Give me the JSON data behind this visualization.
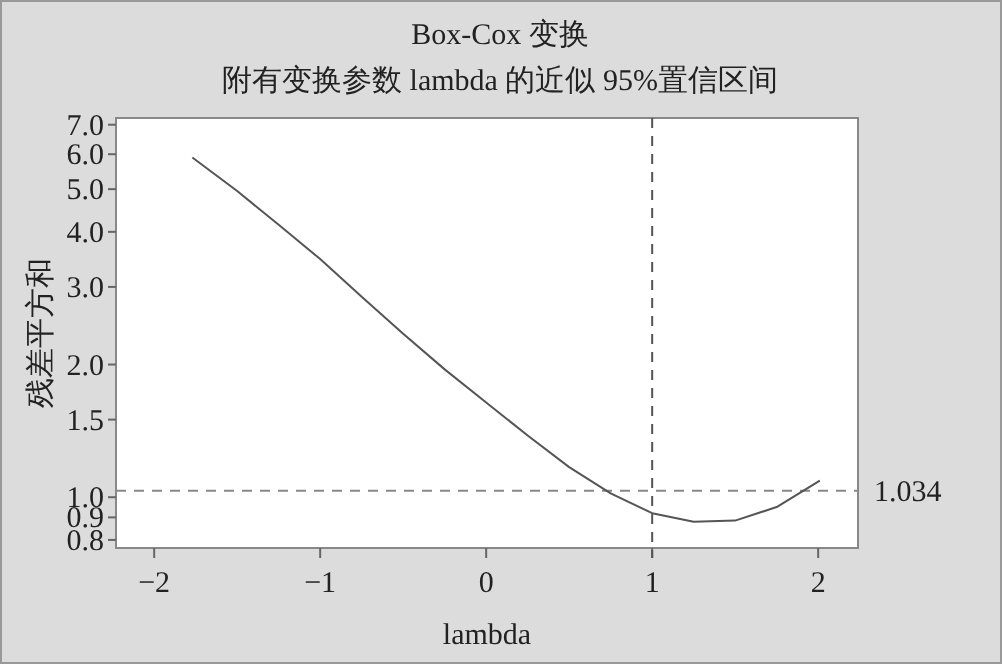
{
  "chart_data": {
    "type": "line",
    "title": "Box-Cox 变换",
    "subtitle": "附有变换参数 lambda 的近似 95%置信区间",
    "xlabel": "lambda",
    "ylabel": "残差平方和",
    "log": "y",
    "line_style": "solid",
    "xlim": [
      -2.23,
      2.24
    ],
    "ylim": [
      0.767,
      7.25
    ],
    "xticks": [
      {
        "value": -2,
        "label": "−2"
      },
      {
        "value": -1,
        "label": "−1"
      },
      0,
      1,
      2
    ],
    "yticks": [
      {
        "value": 0.8,
        "label": "0.8"
      },
      {
        "value": 0.9,
        "label": "0.9"
      },
      {
        "value": 1,
        "label": "1.0"
      },
      {
        "value": 1.5,
        "label": "1.5"
      },
      {
        "value": 2,
        "label": "2.0"
      },
      {
        "value": 3,
        "label": "3.0"
      },
      {
        "value": 4,
        "label": "4.0"
      },
      {
        "value": 5,
        "label": "5.0"
      },
      {
        "value": 6,
        "label": "6.0"
      },
      {
        "value": 7,
        "label": "7.0"
      }
    ],
    "ref_lines": [
      {
        "axis": "y",
        "value": 1.034,
        "label": "1.034",
        "color": "#888888",
        "line_style": "dashed"
      },
      {
        "axis": "x",
        "value": 1,
        "label": null,
        "color": "#555555",
        "line_style": "dashed"
      }
    ],
    "series": [
      {
        "color": "#555555",
        "x": [
          -1.77,
          -1.5,
          -1.25,
          -1.0,
          -0.75,
          -0.5,
          -0.25,
          0,
          0.25,
          0.5,
          0.75,
          1.0,
          1.25,
          1.5,
          1.75,
          2.01
        ],
        "values": [
          5.9,
          4.95,
          4.15,
          3.47,
          2.85,
          2.35,
          1.95,
          1.64,
          1.38,
          1.17,
          1.02,
          0.92,
          0.88,
          0.885,
          0.95,
          1.09
        ]
      }
    ]
  }
}
